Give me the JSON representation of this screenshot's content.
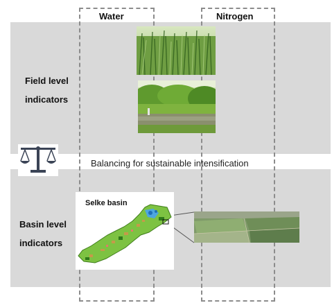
{
  "columns": {
    "water": "Water",
    "nitrogen": "Nitrogen"
  },
  "rows": {
    "field_line1": "Field level",
    "field_line2": "indicators",
    "basin_line1": "Basin level",
    "basin_line2": "indicators"
  },
  "balance_text": "Balancing for sustainable intensification",
  "map_title": "Selke basin",
  "colors": {
    "band": "#d9d9d9",
    "dashed_border": "#8c8c8c",
    "map_green": "#7dc242"
  },
  "icons": [
    "balance-scale-icon"
  ],
  "images": [
    "wheat-field-photo",
    "river-vegetation-photo",
    "selke-basin-map",
    "aerial-farmland-photo"
  ]
}
